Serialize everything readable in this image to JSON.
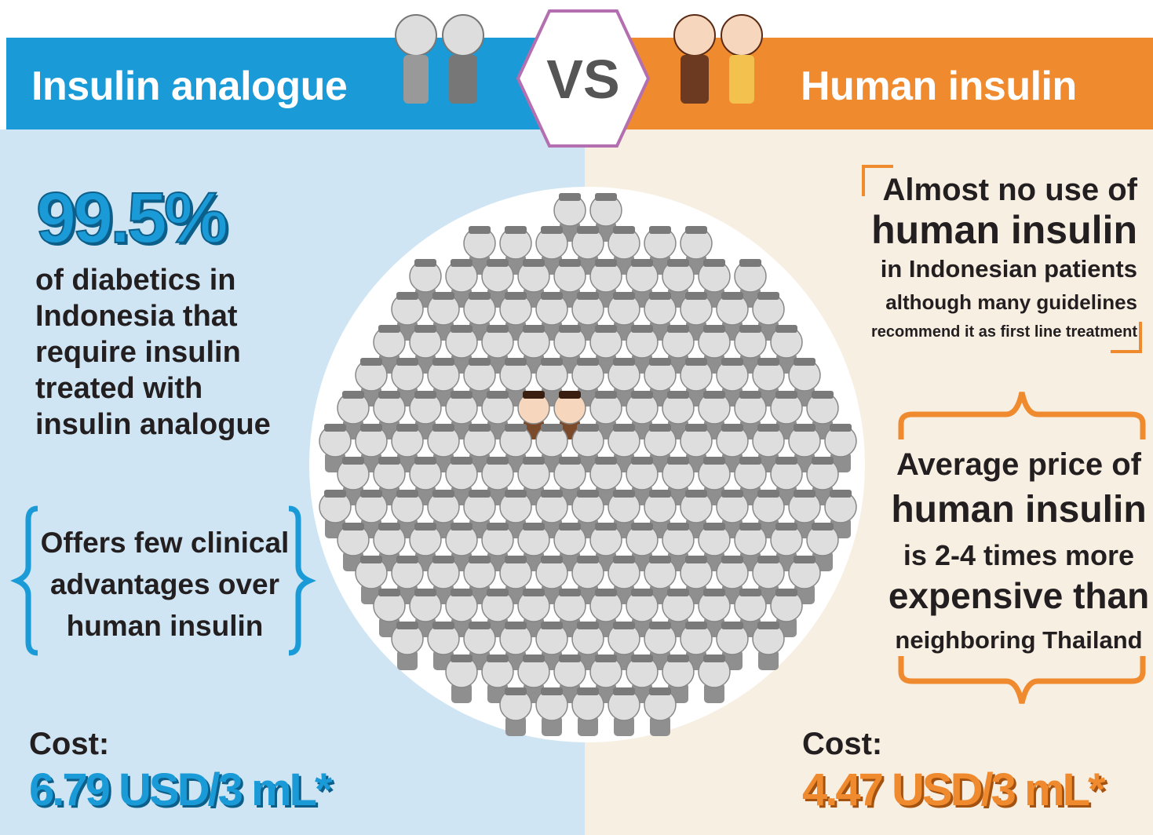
{
  "header": {
    "left_title": "Insulin analogue",
    "vs": "VS",
    "right_title": "Human insulin"
  },
  "left": {
    "stat": "99.5%",
    "description": [
      "of diabetics in",
      "Indonesia that",
      "require insulin",
      "treated with",
      "insulin analogue"
    ],
    "note": [
      "Offers few clinical",
      "advantages over",
      "human insulin"
    ],
    "cost_label": "Cost:",
    "cost_value": "6.79 USD/3 mL*"
  },
  "right": {
    "headline": [
      "Almost no use of",
      "human insulin",
      "in Indonesian patients",
      "although many guidelines",
      "recommend it as first line treatment"
    ],
    "price_note": [
      "Average price of",
      "human insulin",
      "is 2-4 times more",
      "expensive than",
      "neighboring Thailand"
    ],
    "cost_label": "Cost:",
    "cost_value": "4.47 USD/3 mL*"
  }
}
